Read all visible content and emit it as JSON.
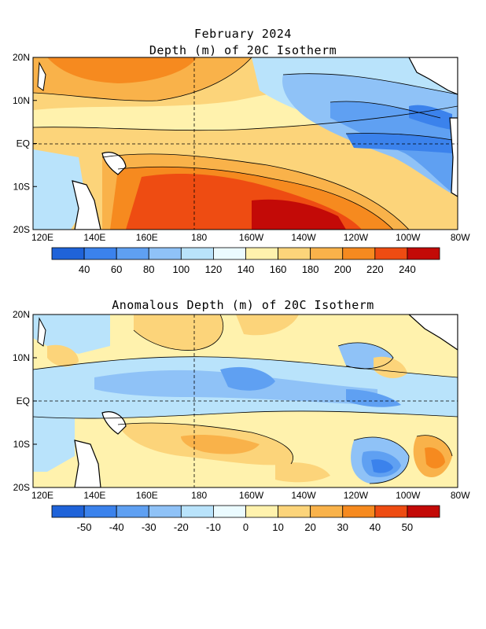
{
  "titles": {
    "line1": "February 2024",
    "line2": "Depth (m) of 20C Isotherm",
    "line3": "Anomalous Depth (m) of 20C Isotherm"
  },
  "lat_labels": [
    "20N",
    "10N",
    "EQ",
    "10S",
    "20S"
  ],
  "lon_labels": [
    "120E",
    "140E",
    "160E",
    "180",
    "160W",
    "140W",
    "120W",
    "100W",
    "80W"
  ],
  "colorbar_top": {
    "labels": [
      "40",
      "60",
      "80",
      "100",
      "120",
      "140",
      "160",
      "180",
      "200",
      "220",
      "240"
    ],
    "colors": [
      "#1f63d9",
      "#3b82ec",
      "#5fa0f2",
      "#8fc2f7",
      "#b9e3fb",
      "#ebfbff",
      "#fff2ad",
      "#fcd47a",
      "#f9b24a",
      "#f68a1f",
      "#ee4c12",
      "#c30a07"
    ]
  },
  "colorbar_bottom": {
    "labels": [
      "-50",
      "-40",
      "-30",
      "-20",
      "-10",
      "0",
      "10",
      "20",
      "30",
      "40",
      "50"
    ],
    "colors": [
      "#1f63d9",
      "#3b82ec",
      "#5fa0f2",
      "#8fc2f7",
      "#b9e3fb",
      "#ebfbff",
      "#fff2ad",
      "#fcd47a",
      "#f9b24a",
      "#f68a1f",
      "#ee4c12",
      "#c30a07"
    ]
  }
}
